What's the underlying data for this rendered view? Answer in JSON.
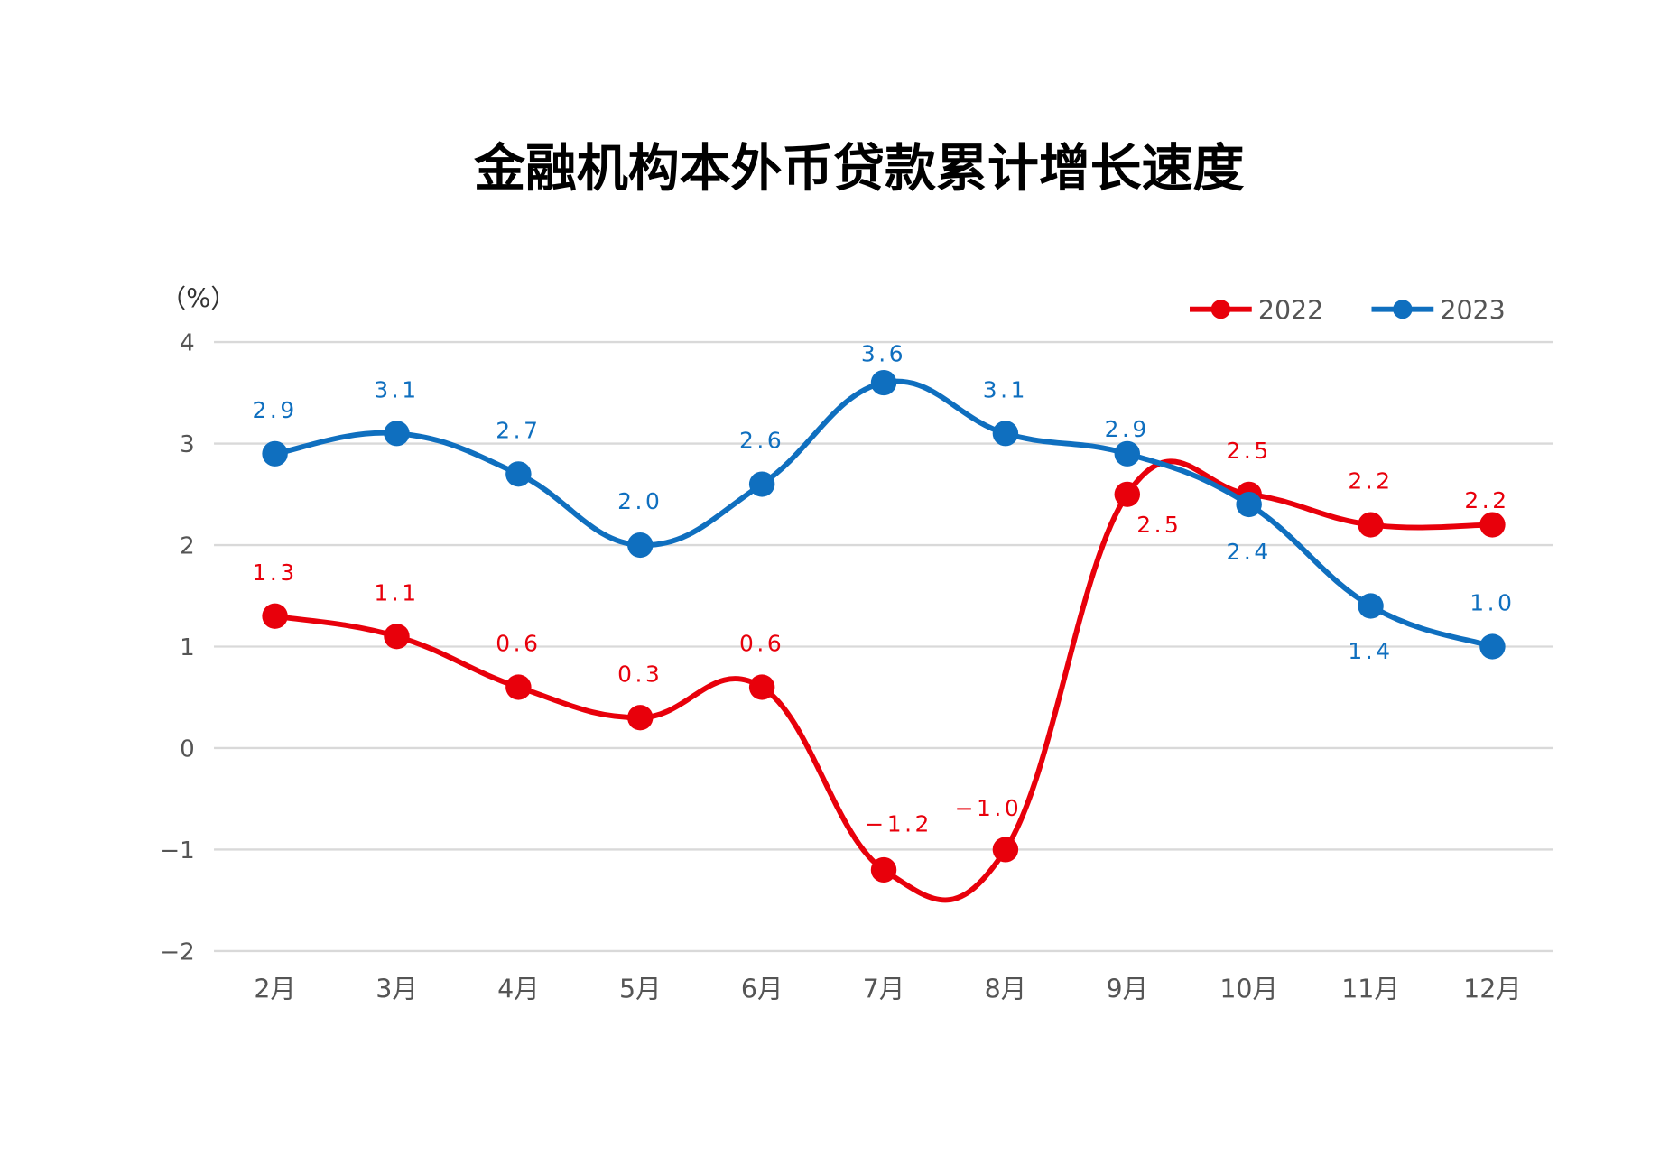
{
  "chart_data": {
    "type": "line",
    "title": "金融机构本外币贷款累计增长速度",
    "ylabel": "（%）",
    "xlabel": "",
    "categories": [
      "2月",
      "3月",
      "4月",
      "5月",
      "6月",
      "7月",
      "8月",
      "9月",
      "10月",
      "11月",
      "12月"
    ],
    "ylim": [
      -2,
      4
    ],
    "yticks": [
      "4",
      "3",
      "2",
      "1",
      "0",
      "−1",
      "−2"
    ],
    "yticks_values": [
      4,
      3,
      2,
      1,
      0,
      -1,
      -2
    ],
    "grid": true,
    "legend_position": "top-right",
    "smooth": true,
    "series": [
      {
        "name": "2022",
        "color": "#e8000b",
        "values": [
          1.3,
          1.1,
          0.6,
          0.3,
          0.6,
          -1.2,
          -1.0,
          2.5,
          2.5,
          2.2,
          2.2
        ],
        "labels": [
          "1.3",
          "1.1",
          "0.6",
          "0.3",
          "0.6",
          "−1.2",
          "−1.0",
          "2.5",
          "2.5",
          "2.2",
          "2.2"
        ]
      },
      {
        "name": "2023",
        "color": "#0f6fbf",
        "values": [
          2.9,
          3.1,
          2.7,
          2.0,
          2.6,
          3.6,
          3.1,
          2.9,
          2.4,
          1.4,
          1.0
        ],
        "labels": [
          "2.9",
          "3.1",
          "2.7",
          "2.0",
          "2.6",
          "3.6",
          "3.1",
          "2.9",
          "2.4",
          "1.4",
          "1.0"
        ]
      }
    ]
  }
}
